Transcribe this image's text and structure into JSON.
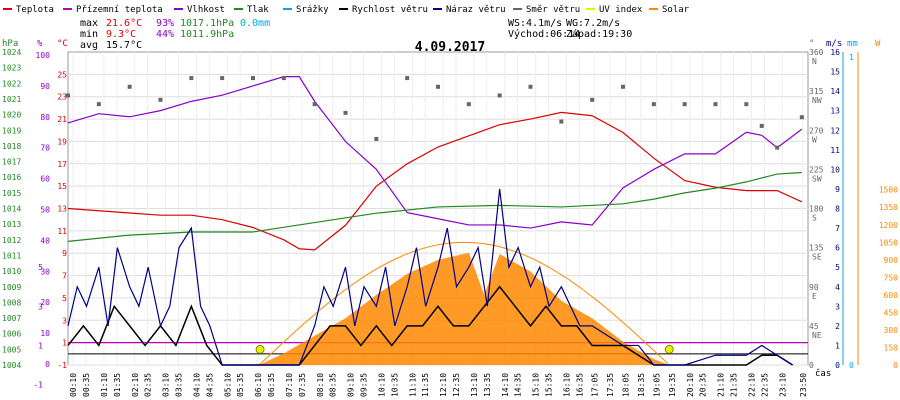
{
  "chart_data": {
    "type": "line",
    "title": "4.09.2017",
    "legend": [
      {
        "label": "Teplota",
        "color": "#dd0000"
      },
      {
        "label": "Přízemní teplota",
        "color": "#bb00bb"
      },
      {
        "label": "Vlhkost",
        "color": "#8800cc"
      },
      {
        "label": "Tlak",
        "color": "#228822"
      },
      {
        "label": "Srážky",
        "color": "#00aadd"
      },
      {
        "label": "Rychlost větru",
        "color": "#000000"
      },
      {
        "label": "Náraz větru",
        "color": "#000088"
      },
      {
        "label": "Směr větru",
        "color": "#666666"
      },
      {
        "label": "UV index",
        "color": "#eeee00"
      },
      {
        "label": "Solar",
        "color": "#ff8800"
      }
    ],
    "stats": {
      "max_label": "max",
      "max_temp": "21.6°C",
      "max_hum": "93%",
      "max_press": "1017.1hPa",
      "rain": "0.0mm",
      "min_label": "min",
      "min_temp": "9.3°C",
      "min_hum": "44%",
      "min_press": "1011.9hPa",
      "avg_label": "avg",
      "avg_temp": "15.7°C"
    },
    "info": {
      "ws": "WS:4.1m/s",
      "wg": "WG:7.2m/s",
      "sunrise": "Východ:06:14",
      "sunset": "Západ:19:30"
    },
    "axis_units": {
      "hpa": "hPa",
      "pct": "%",
      "degc": "°C",
      "deg": "°",
      "ms": "m/s",
      "mm": "mm",
      "w": "W",
      "time": "čas"
    },
    "axes": {
      "hpa_ticks": [
        "1024",
        "1023",
        "1022",
        "1021",
        "1020",
        "1019",
        "1018",
        "1017",
        "1016",
        "1015",
        "1014",
        "1013",
        "1012",
        "1011",
        "1010",
        "1009",
        "1008",
        "1007",
        "1006",
        "1005",
        "1004"
      ],
      "pct_ticks": [
        "100",
        "90",
        "80",
        "70",
        "60",
        "50",
        "40",
        "30",
        "20",
        "10",
        "0"
      ],
      "pct_lower_ticks": [
        "5",
        "3",
        "1",
        "-1"
      ],
      "degc_ticks": [
        "25",
        "23",
        "21",
        "19",
        "17",
        "15",
        "13",
        "11",
        "9",
        "7",
        "5",
        "3",
        "1",
        "-1"
      ],
      "dir_ticks": [
        "360",
        "315",
        "270",
        "225",
        "180",
        "135",
        "90",
        "45",
        "0"
      ],
      "dir_labels": [
        "N",
        "NW",
        "W",
        "SW",
        "S",
        "SE",
        "E",
        "NE",
        ""
      ],
      "ms_ticks": [
        "16",
        "15",
        "14",
        "13",
        "12",
        "11",
        "10",
        "9",
        "8",
        "7",
        "6",
        "5",
        "4",
        "3",
        "2",
        "1",
        "0"
      ],
      "mm_ticks": [
        "1",
        "0"
      ],
      "w_ticks": [
        "1500",
        "1350",
        "1200",
        "1050",
        "900",
        "750",
        "600",
        "450",
        "300",
        "150",
        "0"
      ],
      "time_ticks": [
        "00:10",
        "00:35",
        "01:10",
        "01:35",
        "02:10",
        "02:35",
        "03:10",
        "03:35",
        "04:10",
        "04:35",
        "05:10",
        "05:35",
        "06:10",
        "06:35",
        "07:10",
        "07:35",
        "08:10",
        "08:35",
        "09:10",
        "09:35",
        "10:10",
        "10:35",
        "11:10",
        "11:35",
        "12:10",
        "12:35",
        "13:10",
        "13:35",
        "14:10",
        "14:35",
        "15:10",
        "15:35",
        "16:10",
        "16:35",
        "17:05",
        "17:35",
        "18:05",
        "18:35",
        "19:05",
        "19:35",
        "20:10",
        "20:35",
        "21:10",
        "21:35",
        "22:10",
        "22:35",
        "23:10",
        "23:50"
      ]
    },
    "ranges": {
      "temp_c": [
        -1,
        27
      ],
      "humidity_pct": [
        0,
        100
      ],
      "pressure_hpa": [
        1004,
        1024
      ],
      "wind_ms": [
        0,
        16
      ],
      "direction_deg": [
        0,
        360
      ],
      "solar_w": [
        0,
        1500
      ]
    },
    "series": [
      {
        "name": "Teplota",
        "unit": "°C",
        "x": [
          0,
          1,
          2,
          3,
          4,
          5,
          6,
          7,
          7.5,
          8,
          9,
          10,
          11,
          12,
          13,
          14,
          15,
          16,
          17,
          18,
          19,
          20,
          21,
          22,
          23,
          23.8
        ],
        "values": [
          13,
          12.8,
          12.6,
          12.4,
          12.4,
          12,
          11.3,
          10.2,
          9.4,
          9.3,
          11.5,
          15,
          17,
          18.5,
          19.5,
          20.5,
          21,
          21.6,
          21.3,
          19.8,
          17.5,
          15.5,
          14.9,
          14.6,
          14.6,
          13.6
        ]
      },
      {
        "name": "Vlhkost",
        "unit": "%",
        "x": [
          0,
          1,
          2,
          3,
          4,
          5,
          6,
          7,
          7.5,
          8,
          9,
          10,
          11,
          12,
          13,
          14,
          15,
          16,
          17,
          18,
          19,
          20,
          21,
          22,
          22.5,
          23,
          23.8
        ],
        "values": [
          78,
          81,
          80,
          82,
          85,
          87,
          90,
          93,
          93,
          85,
          72,
          63,
          49,
          47,
          45,
          45,
          44,
          46,
          45,
          57,
          63,
          68,
          68,
          75,
          74,
          70,
          76
        ]
      },
      {
        "name": "Tlak",
        "unit": "hPa",
        "x": [
          0,
          2,
          4,
          6,
          8,
          10,
          12,
          14,
          16,
          18,
          19,
          20,
          21,
          22,
          23,
          23.8
        ],
        "values": [
          1011.9,
          1012.3,
          1012.5,
          1012.5,
          1013.1,
          1013.7,
          1014.1,
          1014.2,
          1014.1,
          1014.3,
          1014.6,
          1015.0,
          1015.3,
          1015.7,
          1016.2,
          1016.3
        ]
      },
      {
        "name": "Rychlost větru",
        "unit": "m/s",
        "x": [
          0,
          0.5,
          1,
          1.5,
          2,
          2.5,
          3,
          3.5,
          4,
          4.5,
          5,
          6,
          7,
          7.5,
          8,
          8.5,
          9,
          9.5,
          10,
          10.5,
          11,
          11.5,
          12,
          12.5,
          13,
          13.5,
          14,
          14.5,
          15,
          15.5,
          16,
          16.5,
          17,
          17.5,
          18,
          18.5,
          19,
          20,
          21,
          22,
          22.5,
          23,
          23.5
        ],
        "values": [
          1,
          2,
          1,
          3,
          2,
          1,
          2,
          1,
          3,
          1,
          0,
          0,
          0,
          0,
          1,
          2,
          2,
          1,
          2,
          1,
          2,
          2,
          3,
          2,
          2,
          3,
          4,
          3,
          2,
          3,
          2,
          2,
          1,
          1,
          1,
          0.5,
          0,
          0,
          0,
          0,
          0.5,
          0.5,
          0
        ]
      },
      {
        "name": "Náraz větru",
        "unit": "m/s",
        "x": [
          0,
          0.3,
          0.6,
          1,
          1.3,
          1.6,
          2,
          2.3,
          2.6,
          3,
          3.3,
          3.6,
          4,
          4.3,
          4.6,
          5,
          6,
          7,
          7.5,
          8,
          8.3,
          8.6,
          9,
          9.3,
          9.6,
          10,
          10.3,
          10.6,
          11,
          11.3,
          11.6,
          12,
          12.3,
          12.6,
          13,
          13.3,
          13.6,
          14,
          14.3,
          14.6,
          15,
          15.3,
          15.6,
          16,
          16.3,
          16.6,
          17,
          17.5,
          18,
          18.5,
          19,
          20,
          21,
          22,
          22.5,
          23,
          23.5
        ],
        "values": [
          2,
          4,
          3,
          5,
          2,
          6,
          4,
          3,
          5,
          2,
          3,
          6,
          7,
          3,
          2,
          0,
          0,
          0,
          0,
          2,
          4,
          3,
          5,
          2,
          4,
          3,
          5,
          2,
          4,
          6,
          3,
          5,
          7,
          4,
          5,
          6,
          3,
          9,
          5,
          6,
          4,
          5,
          3,
          4,
          3,
          2,
          2,
          1.5,
          1,
          1,
          0,
          0,
          0.5,
          0.5,
          1,
          0.5,
          0
        ]
      },
      {
        "name": "Směr větru",
        "unit": "°",
        "x": [
          0,
          1,
          2,
          3,
          4,
          5,
          6,
          7,
          8,
          9,
          10,
          11,
          12,
          13,
          14,
          15,
          16,
          17,
          18,
          19,
          20,
          21,
          22,
          22.5,
          23,
          23.8
        ],
        "values": [
          310,
          300,
          320,
          305,
          330,
          330,
          330,
          330,
          300,
          290,
          260,
          330,
          320,
          300,
          310,
          320,
          280,
          305,
          320,
          300,
          300,
          300,
          300,
          275,
          250,
          285
        ]
      },
      {
        "name": "Solar",
        "unit": "W",
        "x": [
          6.2,
          7,
          8,
          9,
          10,
          11,
          12,
          13,
          13.5,
          14,
          15,
          16,
          17,
          18,
          19,
          19.5
        ],
        "values": [
          0,
          100,
          250,
          400,
          600,
          780,
          900,
          960,
          600,
          950,
          800,
          550,
          400,
          200,
          50,
          0
        ]
      }
    ]
  }
}
